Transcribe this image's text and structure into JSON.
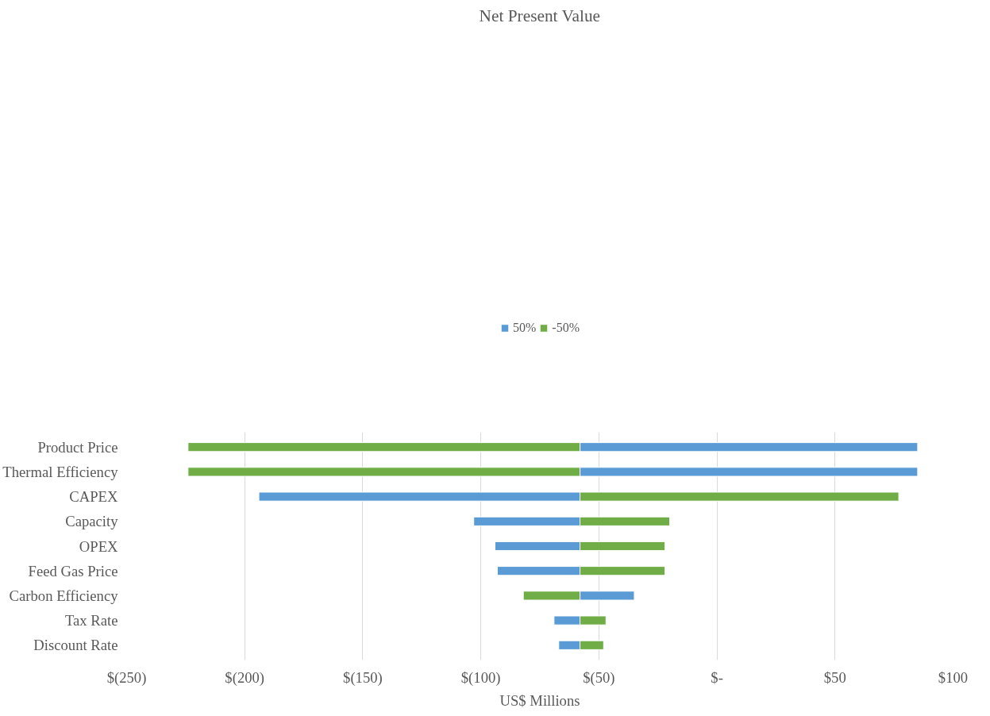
{
  "chart_data": {
    "type": "bar",
    "orientation": "horizontal",
    "title": "Net Present Value",
    "xlabel": "US$ Millions",
    "categories": [
      "Product Price",
      "Thermal Efficiency",
      "CAPEX",
      "Capacity",
      "OPEX",
      "Feed Gas Price",
      "Carbon Efficiency",
      "Tax Rate",
      "Discount Rate"
    ],
    "series": [
      {
        "name": "50%",
        "color": "#5b9bd5",
        "base": [
          -58,
          -58,
          -58,
          -58,
          -58,
          -58,
          -58,
          -58,
          -58
        ],
        "values": [
          143,
          143,
          -136,
          -45,
          -36,
          -35,
          23,
          -11,
          -9
        ]
      },
      {
        "name": "-50%",
        "color": "#70ad47",
        "base": [
          -58,
          -58,
          -58,
          -58,
          -58,
          -58,
          -58,
          -58,
          -58
        ],
        "values": [
          -166,
          -166,
          135,
          38,
          36,
          36,
          -24,
          11,
          10
        ]
      }
    ],
    "xlim": [
      -250,
      100
    ],
    "xticks": [
      {
        "value": -250,
        "label": "$(250)"
      },
      {
        "value": -200,
        "label": "$(200)"
      },
      {
        "value": -150,
        "label": "$(150)"
      },
      {
        "value": -100,
        "label": "$(100)"
      },
      {
        "value": -50,
        "label": "$(50)"
      },
      {
        "value": 0,
        "label": "$-"
      },
      {
        "value": 50,
        "label": "$50"
      },
      {
        "value": 100,
        "label": "$100"
      }
    ],
    "grid": "x",
    "legend": "top"
  }
}
